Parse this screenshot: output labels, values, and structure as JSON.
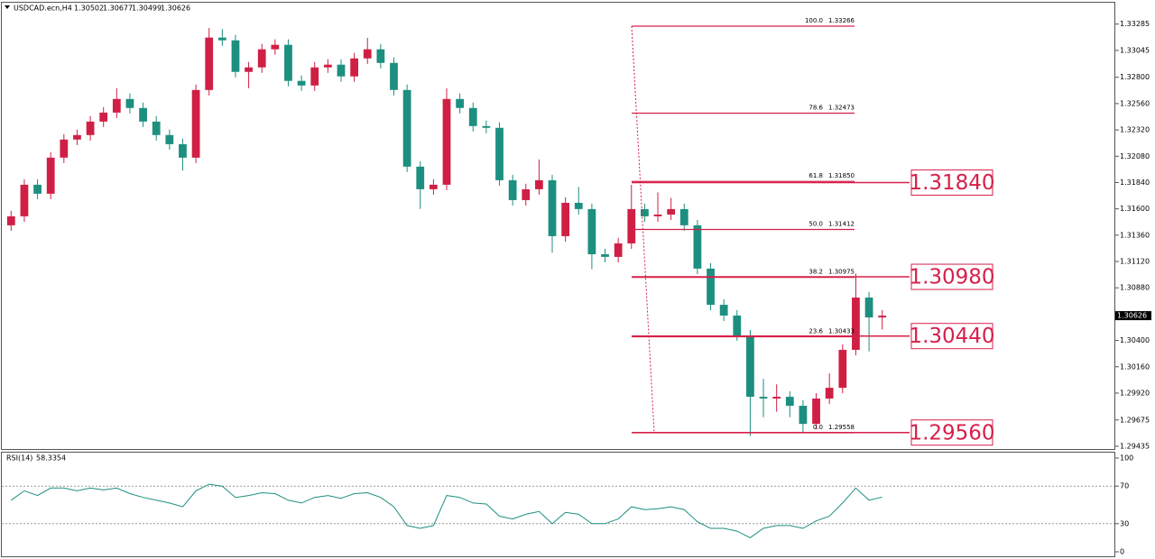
{
  "chart_data": {
    "type": "candlestick",
    "title": "USDCAD.ecn,H4",
    "header_ohlc": [
      1.30502,
      1.30677,
      1.30499,
      1.30626
    ],
    "up_color": "#d01f45",
    "down_color": "#1d8f80",
    "line_color": "#d6204a",
    "ylim": [
      1.2941,
      1.3348
    ],
    "yticks": [
      {
        "value": 1.33285,
        "label": "1.33285"
      },
      {
        "value": 1.33045,
        "label": "1.33045"
      },
      {
        "value": 1.328,
        "label": "1.32800"
      },
      {
        "value": 1.3256,
        "label": "1.32560"
      },
      {
        "value": 1.3232,
        "label": "1.32320"
      },
      {
        "value": 1.3208,
        "label": "1.32080"
      },
      {
        "value": 1.3184,
        "label": "1.31840"
      },
      {
        "value": 1.316,
        "label": "1.31600"
      },
      {
        "value": 1.3136,
        "label": "1.31360"
      },
      {
        "value": 1.3112,
        "label": "1.31120"
      },
      {
        "value": 1.3088,
        "label": "1.30880"
      },
      {
        "value": 1.3064,
        "label": "1.30640"
      },
      {
        "value": 1.304,
        "label": "1.30400"
      },
      {
        "value": 1.3016,
        "label": "1.30160"
      },
      {
        "value": 1.2992,
        "label": "1.29920"
      },
      {
        "value": 1.29675,
        "label": "1.29675"
      },
      {
        "value": 1.29435,
        "label": "1.29435"
      }
    ],
    "current_price": 1.30626,
    "candles": [
      [
        1.3145,
        1.31582,
        1.314,
        1.31532
      ],
      [
        1.31532,
        1.3187,
        1.31482,
        1.3182
      ],
      [
        1.3182,
        1.3187,
        1.31688,
        1.31738
      ],
      [
        1.31738,
        1.32117,
        1.31688,
        1.32067
      ],
      [
        1.32067,
        1.32282,
        1.32017,
        1.32232
      ],
      [
        1.32232,
        1.32323,
        1.32182,
        1.32273
      ],
      [
        1.32273,
        1.32446,
        1.32223,
        1.32396
      ],
      [
        1.32396,
        1.32528,
        1.32346,
        1.32478
      ],
      [
        1.32478,
        1.327,
        1.32428,
        1.32602
      ],
      [
        1.32602,
        1.32652,
        1.3247,
        1.3252
      ],
      [
        1.3252,
        1.3257,
        1.32346,
        1.32396
      ],
      [
        1.32396,
        1.32446,
        1.32223,
        1.32273
      ],
      [
        1.32273,
        1.32323,
        1.3214,
        1.3219
      ],
      [
        1.3219,
        1.3224,
        1.3195,
        1.32067
      ],
      [
        1.32067,
        1.32734,
        1.32017,
        1.32684
      ],
      [
        1.32684,
        1.3325,
        1.32634,
        1.33162
      ],
      [
        1.33162,
        1.3324,
        1.33087,
        1.33137
      ],
      [
        1.33137,
        1.33187,
        1.32799,
        1.32849
      ],
      [
        1.32849,
        1.3294,
        1.327,
        1.3289
      ],
      [
        1.3289,
        1.33105,
        1.3284,
        1.33055
      ],
      [
        1.33055,
        1.33146,
        1.33005,
        1.33096
      ],
      [
        1.33096,
        1.33146,
        1.32717,
        1.32767
      ],
      [
        1.32767,
        1.32817,
        1.32675,
        1.32725
      ],
      [
        1.32725,
        1.3294,
        1.32675,
        1.3289
      ],
      [
        1.3289,
        1.32965,
        1.3284,
        1.32915
      ],
      [
        1.32915,
        1.32965,
        1.32758,
        1.32808
      ],
      [
        1.32808,
        1.33022,
        1.32758,
        1.32972
      ],
      [
        1.32972,
        1.3316,
        1.32922,
        1.33055
      ],
      [
        1.33055,
        1.33105,
        1.32881,
        1.32931
      ],
      [
        1.32931,
        1.32981,
        1.32634,
        1.32684
      ],
      [
        1.32684,
        1.32734,
        1.31935,
        1.31985
      ],
      [
        1.31985,
        1.32035,
        1.316,
        1.31779
      ],
      [
        1.31779,
        1.3187,
        1.31729,
        1.3182
      ],
      [
        1.3182,
        1.327,
        1.3177,
        1.32602
      ],
      [
        1.32602,
        1.32652,
        1.3247,
        1.3252
      ],
      [
        1.3252,
        1.3257,
        1.32305,
        1.32355
      ],
      [
        1.32355,
        1.32405,
        1.32289,
        1.32339
      ],
      [
        1.32339,
        1.32389,
        1.31811,
        1.31861
      ],
      [
        1.31861,
        1.31911,
        1.3163,
        1.3168
      ],
      [
        1.3168,
        1.31829,
        1.3163,
        1.31779
      ],
      [
        1.31779,
        1.3205,
        1.31729,
        1.31861
      ],
      [
        1.31861,
        1.31911,
        1.312,
        1.31351
      ],
      [
        1.31351,
        1.31705,
        1.31301,
        1.31655
      ],
      [
        1.31655,
        1.318,
        1.31548,
        1.31598
      ],
      [
        1.31598,
        1.31648,
        1.3105,
        1.31186
      ],
      [
        1.31186,
        1.31236,
        1.31112,
        1.31162
      ],
      [
        1.31162,
        1.31335,
        1.31112,
        1.31285
      ],
      [
        1.31285,
        1.3182,
        1.31235,
        1.31598
      ],
      [
        1.31598,
        1.31648,
        1.31482,
        1.31532
      ],
      [
        1.31532,
        1.3175,
        1.31482,
        1.31548
      ],
      [
        1.31548,
        1.317,
        1.31498,
        1.31598
      ],
      [
        1.31598,
        1.31648,
        1.314,
        1.3145
      ],
      [
        1.3145,
        1.315,
        1.31005,
        1.31055
      ],
      [
        1.31055,
        1.31105,
        1.30675,
        1.30725
      ],
      [
        1.30725,
        1.30775,
        1.30577,
        1.30627
      ],
      [
        1.30627,
        1.30677,
        1.30396,
        1.30446
      ],
      [
        1.30446,
        1.30496,
        1.2953,
        1.29886
      ],
      [
        1.29886,
        1.3005,
        1.297,
        1.2987
      ],
      [
        1.2987,
        1.3,
        1.2975,
        1.29886
      ],
      [
        1.29886,
        1.29936,
        1.297,
        1.29804
      ],
      [
        1.29804,
        1.29854,
        1.29558,
        1.29639
      ],
      [
        1.29639,
        1.2992,
        1.29589,
        1.2987
      ],
      [
        1.2987,
        1.301,
        1.2982,
        1.29968
      ],
      [
        1.29968,
        1.30364,
        1.29918,
        1.30314
      ],
      [
        1.30314,
        1.3101,
        1.30264,
        1.30791
      ],
      [
        1.30791,
        1.30841,
        1.303,
        1.3061
      ],
      [
        1.3061,
        1.30677,
        1.30499,
        1.30626
      ]
    ],
    "fibonacci": [
      {
        "level": "100.0",
        "price": {
          "value": 1.33266,
          "label": "1.33266"
        }
      },
      {
        "level": "78.6",
        "price": {
          "value": 1.32473,
          "label": "1.32473"
        }
      },
      {
        "level": "61.8",
        "price": {
          "value": 1.3185,
          "label": "1.31850"
        }
      },
      {
        "level": "50.0",
        "price": {
          "value": 1.31412,
          "label": "1.31412"
        }
      },
      {
        "level": "38.2",
        "price": {
          "value": 1.30975,
          "label": "1.30975"
        }
      },
      {
        "level": "23.6",
        "price": {
          "value": 1.30433,
          "label": "1.30433"
        }
      },
      {
        "level": "0.0",
        "price": {
          "value": 1.29558,
          "label": "1.29558"
        }
      }
    ],
    "levels": [
      {
        "value": 1.3184,
        "label": "1.31840"
      },
      {
        "value": 1.3098,
        "label": "1.30980"
      },
      {
        "value": 1.3044,
        "label": "1.30440"
      },
      {
        "value": 1.2956,
        "label": "1.29560"
      }
    ],
    "rsi": {
      "label": "RSI(14)",
      "current": 58.3354,
      "color": "#1d8f80",
      "ylim": [
        0,
        100
      ],
      "yticks": [
        0,
        30,
        70,
        100
      ],
      "levels": [
        30,
        70
      ],
      "values": [
        55,
        65,
        60,
        68,
        68,
        65,
        68,
        66,
        68,
        62,
        58,
        55,
        52,
        48,
        65,
        72,
        70,
        58,
        60,
        63,
        62,
        55,
        52,
        58,
        60,
        57,
        62,
        63,
        58,
        48,
        28,
        25,
        28,
        60,
        58,
        52,
        51,
        38,
        35,
        40,
        43,
        30,
        42,
        40,
        30,
        30,
        35,
        48,
        45,
        46,
        48,
        45,
        32,
        25,
        25,
        22,
        15,
        25,
        28,
        28,
        25,
        33,
        38,
        52,
        68,
        55,
        58.3354
      ]
    }
  }
}
